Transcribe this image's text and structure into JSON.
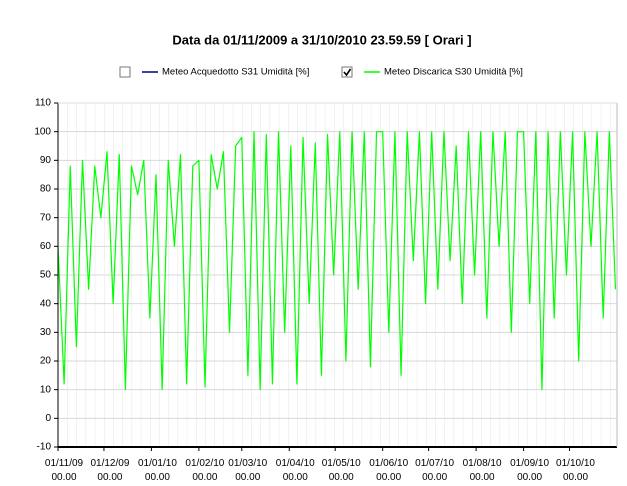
{
  "chart_data": {
    "type": "line",
    "title": "Data da 01/11/2009 a 31/10/2010 23.59.59  [ Orari ]",
    "x": [
      "2009-11-01",
      "2009-11-05",
      "2009-11-09",
      "2009-11-13",
      "2009-11-17",
      "2009-11-21",
      "2009-11-25",
      "2009-11-29",
      "2009-12-03",
      "2009-12-07",
      "2009-12-11",
      "2009-12-15",
      "2009-12-19",
      "2009-12-23",
      "2009-12-27",
      "2009-12-31",
      "2010-01-04",
      "2010-01-08",
      "2010-01-12",
      "2010-01-16",
      "2010-01-20",
      "2010-01-24",
      "2010-01-28",
      "2010-02-01",
      "2010-02-05",
      "2010-02-09",
      "2010-02-13",
      "2010-02-17",
      "2010-02-21",
      "2010-02-25",
      "2010-03-01",
      "2010-03-05",
      "2010-03-09",
      "2010-03-13",
      "2010-03-17",
      "2010-03-21",
      "2010-03-25",
      "2010-03-29",
      "2010-04-02",
      "2010-04-06",
      "2010-04-10",
      "2010-04-14",
      "2010-04-18",
      "2010-04-22",
      "2010-04-26",
      "2010-04-30",
      "2010-05-04",
      "2010-05-08",
      "2010-05-12",
      "2010-05-16",
      "2010-05-20",
      "2010-05-24",
      "2010-05-28",
      "2010-06-01",
      "2010-06-05",
      "2010-06-09",
      "2010-06-13",
      "2010-06-17",
      "2010-06-21",
      "2010-06-25",
      "2010-06-29",
      "2010-07-03",
      "2010-07-07",
      "2010-07-11",
      "2010-07-15",
      "2010-07-19",
      "2010-07-23",
      "2010-07-27",
      "2010-07-31",
      "2010-08-04",
      "2010-08-08",
      "2010-08-12",
      "2010-08-16",
      "2010-08-20",
      "2010-08-24",
      "2010-08-28",
      "2010-09-01",
      "2010-09-05",
      "2010-09-09",
      "2010-09-13",
      "2010-09-17",
      "2010-09-21",
      "2010-09-25",
      "2010-09-29",
      "2010-10-03",
      "2010-10-07",
      "2010-10-11",
      "2010-10-15",
      "2010-10-19",
      "2010-10-23",
      "2010-10-27",
      "2010-10-31"
    ],
    "series": [
      {
        "name": "Meteo Acquedotto S31 Umidità [%]",
        "color": "#000080",
        "checked": false
      },
      {
        "name": "Meteo Discarica S30 Umidità [%]",
        "color": "#00ff00",
        "checked": true,
        "values": [
          60,
          12,
          88,
          25,
          90,
          45,
          88,
          70,
          93,
          40,
          92,
          10,
          88,
          78,
          90,
          35,
          85,
          10,
          90,
          60,
          92,
          12,
          88,
          90,
          11,
          92,
          80,
          93,
          30,
          95,
          98,
          15,
          100,
          10,
          99,
          12,
          100,
          30,
          95,
          12,
          98,
          40,
          96,
          15,
          99,
          50,
          100,
          20,
          100,
          45,
          100,
          18,
          100,
          100,
          30,
          100,
          15,
          100,
          55,
          100,
          40,
          100,
          45,
          100,
          55,
          95,
          40,
          100,
          50,
          100,
          35,
          100,
          60,
          100,
          30,
          100,
          100,
          40,
          100,
          10,
          100,
          35,
          100,
          50,
          100,
          20,
          100,
          60,
          100,
          35,
          100,
          45
        ]
      }
    ],
    "xlim": [
      "2009-11-01T00:00",
      "2010-10-31T23:59"
    ],
    "xticks": [
      {
        "value": "2009-11-01T00:00",
        "label": "01/11/09 00.00"
      },
      {
        "value": "2009-12-01T00:00",
        "label": "01/12/09 00.00"
      },
      {
        "value": "2010-01-01T00:00",
        "label": "01/01/10 00.00"
      },
      {
        "value": "2010-02-01T00:00",
        "label": "01/02/10 00.00"
      },
      {
        "value": "2010-03-01T00:00",
        "label": "01/03/10 00.00"
      },
      {
        "value": "2010-04-01T00:00",
        "label": "01/04/10 00.00"
      },
      {
        "value": "2010-05-01T00:00",
        "label": "01/05/10 00.00"
      },
      {
        "value": "2010-06-01T00:00",
        "label": "01/06/10 00.00"
      },
      {
        "value": "2010-07-01T00:00",
        "label": "01/07/10 00.00"
      },
      {
        "value": "2010-08-01T00:00",
        "label": "01/08/10 00.00"
      },
      {
        "value": "2010-09-01T00:00",
        "label": "01/09/10 00.00"
      },
      {
        "value": "2010-10-01T00:00",
        "label": "01/10/10 00.00"
      }
    ],
    "ylim": [
      -10,
      110
    ],
    "yticks": [
      -10,
      0,
      10,
      20,
      30,
      40,
      50,
      60,
      70,
      80,
      90,
      100,
      110
    ],
    "grid": true
  }
}
